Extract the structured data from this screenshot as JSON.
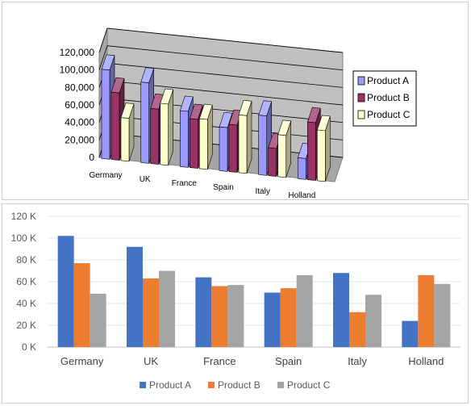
{
  "chart_data": [
    {
      "type": "bar",
      "style": "3d-clustered-column",
      "categories": [
        "Germany",
        "UK",
        "France",
        "Spain",
        "Italy",
        "Holland"
      ],
      "series": [
        {
          "name": "Product A",
          "values": [
            102000,
            92000,
            64000,
            50000,
            68000,
            24000
          ],
          "color": "#9999ff"
        },
        {
          "name": "Product B",
          "values": [
            77000,
            63000,
            56000,
            54000,
            32000,
            66000
          ],
          "color": "#993366"
        },
        {
          "name": "Product C",
          "values": [
            49000,
            70000,
            57000,
            66000,
            48000,
            58000
          ],
          "color": "#ffffcc"
        }
      ],
      "ylim": [
        0,
        120000
      ],
      "yticks": [
        "120,000",
        "100,000",
        "80,000",
        "60,000",
        "40,000",
        "20,000",
        "0"
      ],
      "grid": true,
      "legend": "right",
      "wall_color": "#c0c0c0"
    },
    {
      "type": "bar",
      "categories": [
        "Germany",
        "UK",
        "France",
        "Spain",
        "Italy",
        "Holland"
      ],
      "series": [
        {
          "name": "Product A",
          "values": [
            102000,
            92000,
            64000,
            50000,
            68000,
            24000
          ],
          "color": "#4472c4"
        },
        {
          "name": "Product B",
          "values": [
            77000,
            63000,
            56000,
            54000,
            32000,
            66000
          ],
          "color": "#ed7d31"
        },
        {
          "name": "Product C",
          "values": [
            49000,
            70000,
            57000,
            66000,
            48000,
            58000
          ],
          "color": "#a5a5a5"
        }
      ],
      "ylim": [
        0,
        120000
      ],
      "yticks": [
        "120 K",
        "100 K",
        "80 K",
        "60 K",
        "40 K",
        "20 K",
        "0 K"
      ],
      "grid": true,
      "legend": "bottom"
    }
  ]
}
